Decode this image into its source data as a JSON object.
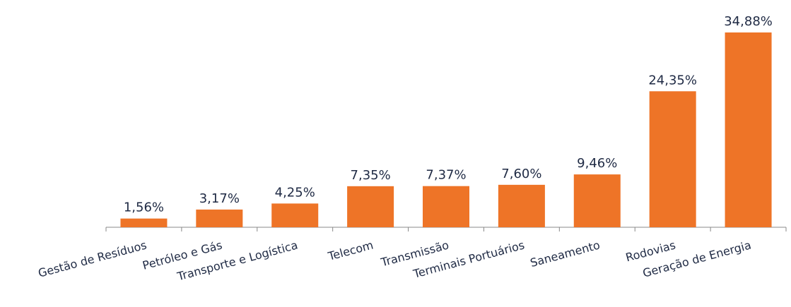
{
  "chart_data": {
    "type": "bar",
    "categories": [
      "Gestão de Resíduos",
      "Petróleo e Gás",
      "Transporte e Logística",
      "Telecom",
      "Transmissão",
      "Terminais Portuários",
      "Saneamento",
      "Rodovias",
      "Geração de Energia"
    ],
    "values": [
      1.56,
      3.17,
      4.25,
      7.35,
      7.37,
      7.6,
      9.46,
      24.35,
      34.88
    ],
    "value_labels": [
      "1,56%",
      "3,17%",
      "4,25%",
      "7,35%",
      "7,37%",
      "7,60%",
      "9,46%",
      "24,35%",
      "34,88%"
    ],
    "color": "#ee7427"
  }
}
